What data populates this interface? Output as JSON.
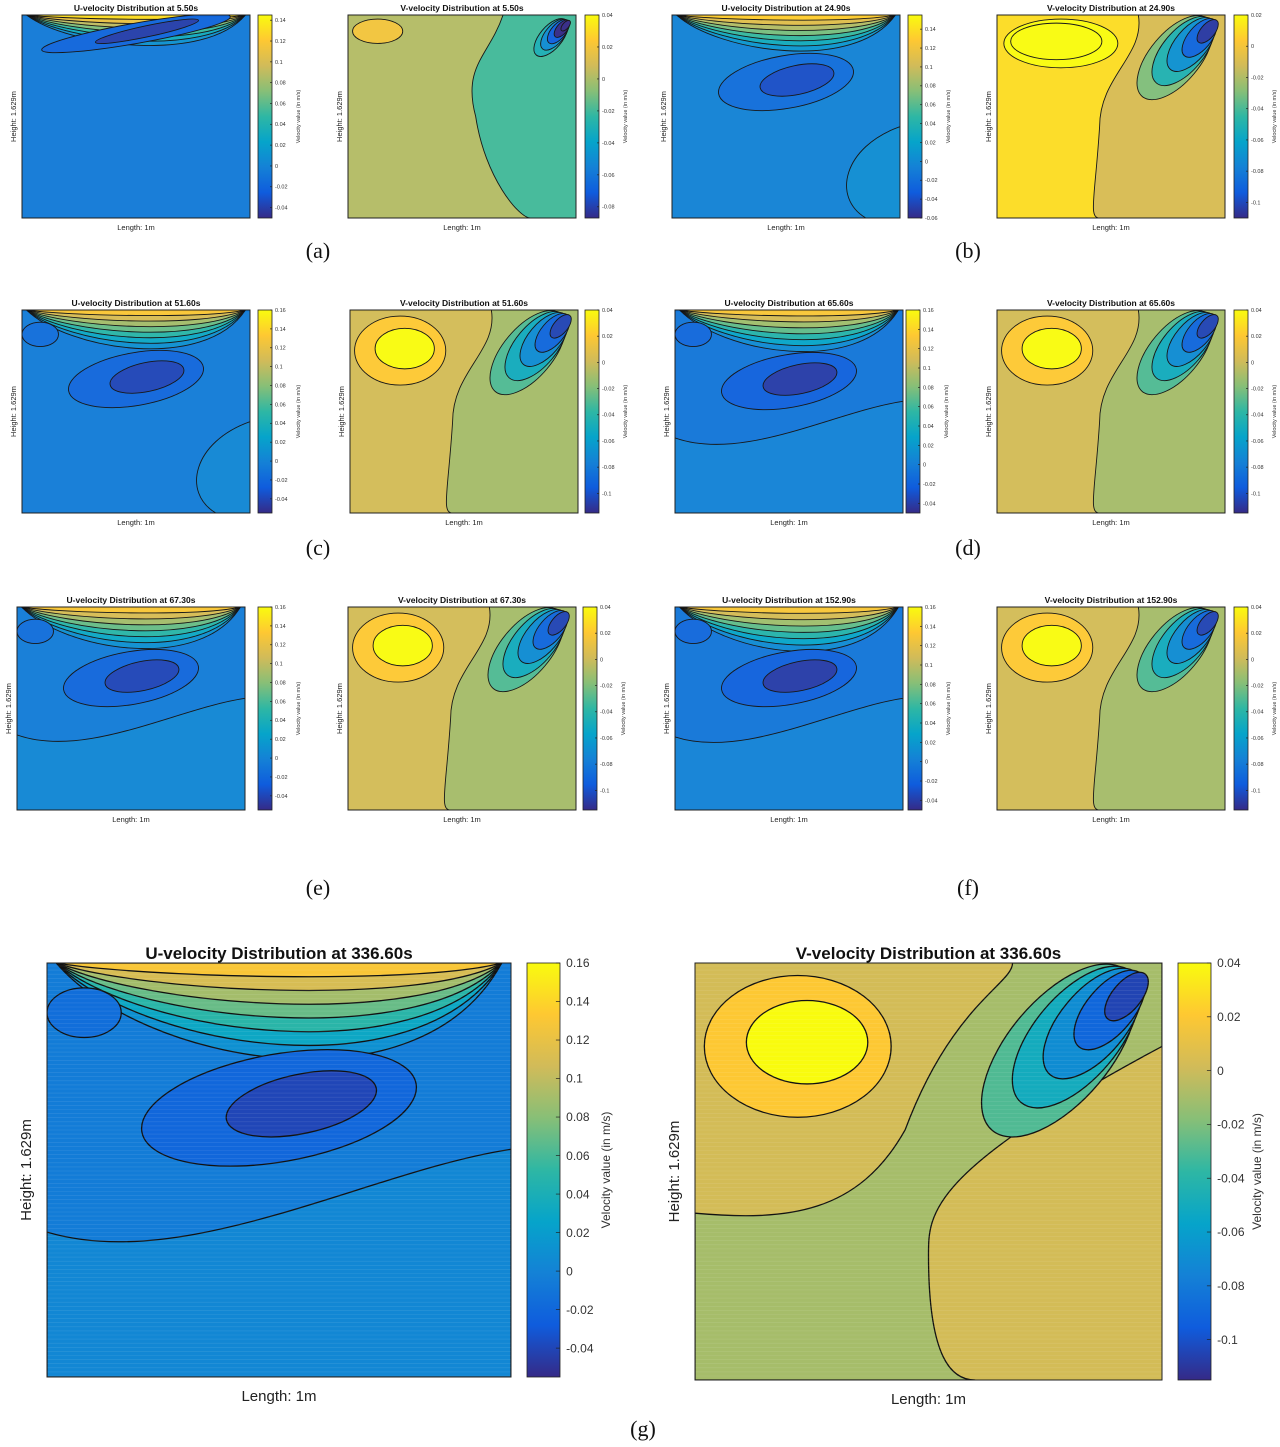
{
  "captions": [
    "(a)",
    "(b)",
    "(c)",
    "(d)",
    "(e)",
    "(f)",
    "(g)"
  ],
  "colormap": [
    "#352a87",
    "#0f5cdd",
    "#1481d6",
    "#06a4ca",
    "#2eb7a4",
    "#87bf77",
    "#d1bb59",
    "#fec832",
    "#f9fb0e"
  ],
  "chart_data": [
    {
      "type": "contour",
      "panel": "(a)",
      "component": "U",
      "title": "U-velocity Distribution at 5.50s",
      "xlabel": "Length: 1m",
      "ylabel": "Height: 1.629m",
      "colorbar": {
        "label": "Velocity value (in m/s)",
        "ticks": [
          0.14,
          0.12,
          0.1,
          0.08,
          0.06,
          0.04,
          0.02,
          0,
          -0.02,
          -0.04
        ],
        "range": [
          -0.05,
          0.145
        ]
      }
    },
    {
      "type": "contour",
      "panel": "(a)",
      "component": "V",
      "title": "V-velocity Distribution at 5.50s",
      "xlabel": "Length: 1m",
      "ylabel": "Height: 1.629m",
      "colorbar": {
        "label": "Velocity value (in m/s)",
        "ticks": [
          0.04,
          0.02,
          0,
          -0.02,
          -0.04,
          -0.06,
          -0.08
        ],
        "range": [
          -0.087,
          0.04
        ]
      }
    },
    {
      "type": "contour",
      "panel": "(b)",
      "component": "U",
      "title": "U-velocity Distribution at 24.90s",
      "xlabel": "Length: 1m",
      "ylabel": "Height: 1.629m",
      "colorbar": {
        "label": "Velocity value (in m/s)",
        "ticks": [
          0.14,
          0.12,
          0.1,
          0.08,
          0.06,
          0.04,
          0.02,
          0,
          -0.02,
          -0.04,
          -0.06
        ],
        "range": [
          -0.06,
          0.155
        ]
      }
    },
    {
      "type": "contour",
      "panel": "(b)",
      "component": "V",
      "title": "V-velocity Distribution at 24.90s",
      "xlabel": "Length: 1m",
      "ylabel": "Height: 1.629m",
      "colorbar": {
        "label": "Velocity value (in m/s)",
        "ticks": [
          0.02,
          0,
          -0.02,
          -0.04,
          -0.06,
          -0.08,
          -0.1
        ],
        "range": [
          -0.11,
          0.02
        ]
      }
    },
    {
      "type": "contour",
      "panel": "(c)",
      "component": "U",
      "title": "U-velocity Distribution at 51.60s",
      "xlabel": "Length: 1m",
      "ylabel": "Height: 1.629m",
      "colorbar": {
        "label": "Velocity value (in m/s)",
        "ticks": [
          0.16,
          0.14,
          0.12,
          0.1,
          0.08,
          0.06,
          0.04,
          0.02,
          0,
          -0.02,
          -0.04
        ],
        "range": [
          -0.055,
          0.16
        ]
      }
    },
    {
      "type": "contour",
      "panel": "(c)",
      "component": "V",
      "title": "V-velocity Distribution at 51.60s",
      "xlabel": "Length: 1m",
      "ylabel": "Height: 1.629m",
      "colorbar": {
        "label": "Velocity value (in m/s)",
        "ticks": [
          0.04,
          0.02,
          0,
          -0.02,
          -0.04,
          -0.06,
          -0.08,
          -0.1
        ],
        "range": [
          -0.115,
          0.04
        ]
      }
    },
    {
      "type": "contour",
      "panel": "(d)",
      "component": "U",
      "title": "U-velocity Distribution at 65.60s",
      "xlabel": "Length: 1m",
      "ylabel": "Height: 1.629m",
      "colorbar": {
        "label": "Velocity value (in m/s)",
        "ticks": [
          0.16,
          0.14,
          0.12,
          0.1,
          0.08,
          0.06,
          0.04,
          0.02,
          0,
          -0.02,
          -0.04
        ],
        "range": [
          -0.05,
          0.16
        ]
      }
    },
    {
      "type": "contour",
      "panel": "(d)",
      "component": "V",
      "title": "V-velocity Distribution at 65.60s",
      "xlabel": "Length: 1m",
      "ylabel": "Height: 1.629m",
      "colorbar": {
        "label": "Velocity value (in m/s)",
        "ticks": [
          0.04,
          0.02,
          0,
          -0.02,
          -0.04,
          -0.06,
          -0.08,
          -0.1
        ],
        "range": [
          -0.115,
          0.04
        ]
      }
    },
    {
      "type": "contour",
      "panel": "(e)",
      "component": "U",
      "title": "U-velocity Distribution at 67.30s",
      "xlabel": "Length: 1m",
      "ylabel": "Height: 1.629m",
      "colorbar": {
        "label": "Velocity value (in m/s)",
        "ticks": [
          0.16,
          0.14,
          0.12,
          0.1,
          0.08,
          0.06,
          0.04,
          0.02,
          0,
          -0.02,
          -0.04
        ],
        "range": [
          -0.055,
          0.16
        ]
      }
    },
    {
      "type": "contour",
      "panel": "(e)",
      "component": "V",
      "title": "V-velocity Distribution at 67.30s",
      "xlabel": "Length: 1m",
      "ylabel": "Height: 1.629m",
      "colorbar": {
        "label": "Velocity value (in m/s)",
        "ticks": [
          0.04,
          0.02,
          0,
          -0.02,
          -0.04,
          -0.06,
          -0.08,
          -0.1
        ],
        "range": [
          -0.115,
          0.04
        ]
      }
    },
    {
      "type": "contour",
      "panel": "(f)",
      "component": "U",
      "title": "U-velocity Distribution at 152.90s",
      "xlabel": "Length: 1m",
      "ylabel": "Height: 1.629m",
      "colorbar": {
        "label": "Velocity value (in m/s)",
        "ticks": [
          0.16,
          0.14,
          0.12,
          0.1,
          0.08,
          0.06,
          0.04,
          0.02,
          0,
          -0.02,
          -0.04
        ],
        "range": [
          -0.05,
          0.16
        ]
      }
    },
    {
      "type": "contour",
      "panel": "(f)",
      "component": "V",
      "title": "V-velocity Distribution at 152.90s",
      "xlabel": "Length: 1m",
      "ylabel": "Height: 1.629m",
      "colorbar": {
        "label": "Velocity value (in m/s)",
        "ticks": [
          0.04,
          0.02,
          0,
          -0.02,
          -0.04,
          -0.06,
          -0.08,
          -0.1
        ],
        "range": [
          -0.115,
          0.04
        ]
      }
    },
    {
      "type": "contour",
      "panel": "(g)",
      "component": "U",
      "title": "U-velocity Distribution at 336.60s",
      "xlabel": "Length: 1m",
      "ylabel": "Height: 1.629m",
      "colorbar": {
        "label": "Velocity value (in m/s)",
        "ticks": [
          0.16,
          0.14,
          0.12,
          0.1,
          0.08,
          0.06,
          0.04,
          0.02,
          0,
          -0.02,
          -0.04
        ],
        "range": [
          -0.055,
          0.16
        ]
      }
    },
    {
      "type": "contour",
      "panel": "(g)",
      "component": "V",
      "title": "V-velocity Distribution at 336.60s",
      "xlabel": "Length: 1m",
      "ylabel": "Height: 1.629m",
      "colorbar": {
        "label": "Velocity value (in m/s)",
        "ticks": [
          0.04,
          0.02,
          0,
          -0.02,
          -0.04,
          -0.06,
          -0.08,
          -0.1
        ],
        "range": [
          -0.115,
          0.04
        ]
      }
    }
  ]
}
